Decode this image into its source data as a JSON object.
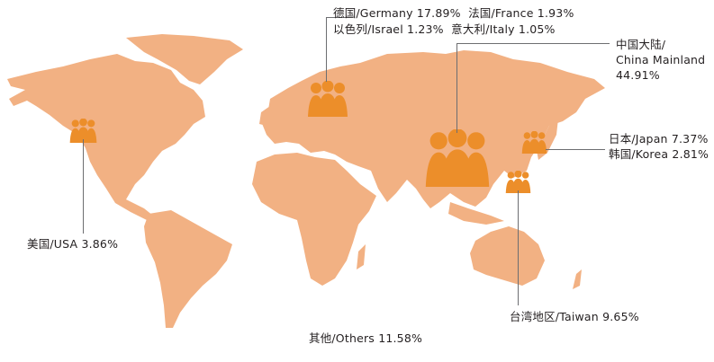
{
  "colors": {
    "land": "#F2B183",
    "icon": "#EC8E2A",
    "leader": "#6D6E71",
    "text": "#231F20"
  },
  "icons": {
    "marker": "people-group-icon"
  },
  "markets": {
    "europe_line1": {
      "germany": "德国/Germany 17.89%",
      "france": "法国/France 1.93%"
    },
    "europe_line2": {
      "israel": "以色列/Israel 1.23%",
      "italy": "意大利/Italy 1.05%"
    },
    "china": {
      "line1": "中国大陆/",
      "line2": "China Mainland",
      "line3": "44.91%"
    },
    "japan": "日本/Japan 7.37%",
    "korea": "韩国/Korea 2.81%",
    "usa": "美国/USA 3.86%",
    "taiwan": "台湾地区/Taiwan 9.65%",
    "others": "其他/Others 11.58%"
  }
}
